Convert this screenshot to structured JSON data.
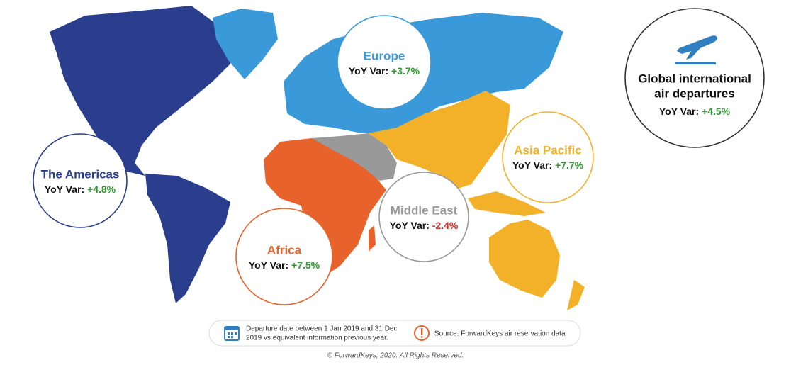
{
  "regions": [
    {
      "name": "The Americas",
      "label": "YoY Var:",
      "value": "+4.8%"
    },
    {
      "name": "Europe",
      "label": "YoY Var:",
      "value": "+3.7%"
    },
    {
      "name": "Africa",
      "label": "YoY Var:",
      "value": "+7.5%"
    },
    {
      "name": "Middle East",
      "label": "YoY Var:",
      "value": "-2.4%"
    },
    {
      "name": "Asia Pacific",
      "label": "YoY Var:",
      "value": "+7.7%"
    }
  ],
  "global": {
    "title_lines": [
      "Global international",
      "air departures"
    ],
    "label": "YoY Var:",
    "value": "+4.5%"
  },
  "footer": {
    "date_note_lines": [
      "Departure date between 1 Jan 2019 and 31 Dec",
      "2019 vs equivalent information previous year."
    ],
    "source": "Source: ForwardKeys air reservation data.",
    "copyright": "© ForwardKeys, 2020. All Rights Reserved."
  }
}
